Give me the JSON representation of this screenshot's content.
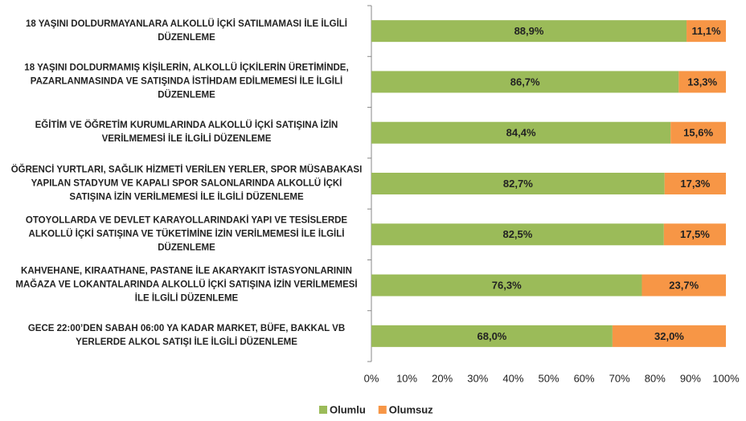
{
  "chart_data": {
    "type": "stacked_barh",
    "categories": [
      "18 YAŞINI DOLDURMAYANLARA ALKOLLÜ İÇKİ SATILMAMASI İLE İLGİLİ DÜZENLEME",
      "18 YAŞINI DOLDURMAMIŞ KİŞİLERİN, ALKOLLÜ İÇKİLERİN ÜRETİMİNDE, PAZARLANMASINDA VE SATIŞINDA İSTİHDAM EDİLMEMESİ İLE İLGİLİ DÜZENLEME",
      "EĞİTİM VE ÖĞRETİM KURUMLARINDA ALKOLLÜ İÇKİ SATIŞINA İZİN VERİLMEMESİ İLE İLGİLİ DÜZENLEME",
      "ÖĞRENCİ YURTLARI, SAĞLIK HİZMETİ VERİLEN YERLER, SPOR MÜSABAKASI YAPILAN STADYUM VE KAPALI SPOR SALONLARINDA ALKOLLÜ İÇKİ SATIŞINA İZİN VERİLMEMESİ İLE İLGİLİ DÜZENLEME",
      "OTOYOLLARDA VE DEVLET KARAYOLLARINDAKİ YAPI VE TESİSLERDE ALKOLLÜ İÇKİ SATIŞINA VE TÜKETİMİNE İZİN VERİLMEMESİ İLE İLGİLİ DÜZENLEME",
      "KAHVEHANE, KIRAATHANE, PASTANE İLE AKARYAKIT İSTASYONLARININ MAĞAZA VE LOKANTALARINDA ALKOLLÜ İÇKİ SATIŞINA İZİN VERİLMEMESİ İLE İLGİLİ DÜZENLEME",
      "GECE 22:00’DEN SABAH 06:00 YA KADAR MARKET, BÜFE, BAKKAL VB YERLERDE ALKOL SATIŞI İLE İLGİLİ DÜZENLEME"
    ],
    "series": [
      {
        "name": "Olumlu",
        "color": "#9bbb59",
        "values": [
          88.9,
          86.7,
          84.4,
          82.7,
          82.5,
          76.3,
          68.0
        ],
        "value_labels": [
          "88,9%",
          "86,7%",
          "84,4%",
          "82,7%",
          "82,5%",
          "76,3%",
          "68,0%"
        ]
      },
      {
        "name": "Olumsuz",
        "color": "#f79646",
        "values": [
          11.1,
          13.3,
          15.6,
          17.3,
          17.5,
          23.7,
          32.0
        ],
        "value_labels": [
          "11,1%",
          "13,3%",
          "15,6%",
          "17,3%",
          "17,5%",
          "23,7%",
          "32,0%"
        ]
      }
    ],
    "xlim": [
      0,
      100
    ],
    "xticks": [
      {
        "value": 0,
        "label": "0%"
      },
      {
        "value": 10,
        "label": "10%"
      },
      {
        "value": 20,
        "label": "20%"
      },
      {
        "value": 30,
        "label": "30%"
      },
      {
        "value": 40,
        "label": "40%"
      },
      {
        "value": 50,
        "label": "50%"
      },
      {
        "value": 60,
        "label": "60%"
      },
      {
        "value": 70,
        "label": "70%"
      },
      {
        "value": 80,
        "label": "80%"
      },
      {
        "value": 90,
        "label": "90%"
      },
      {
        "value": 100,
        "label": "100%"
      }
    ],
    "legend": "bottom"
  }
}
